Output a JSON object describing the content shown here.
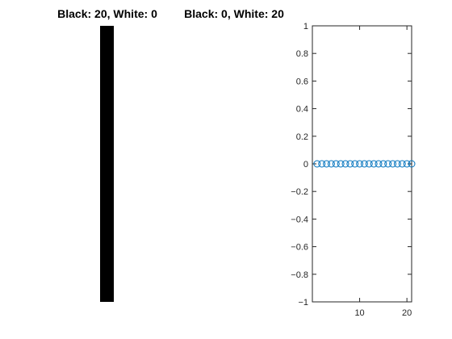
{
  "panels": {
    "left": {
      "title": "Black: 20, White: 0",
      "fill_color": "#000000"
    },
    "middle": {
      "title": "Black: 0, White: 20",
      "fill_color": "#ffffff"
    }
  },
  "chart_data": {
    "type": "scatter",
    "title": "",
    "xlabel": "",
    "ylabel": "",
    "xlim": [
      0,
      21
    ],
    "ylim": [
      -1,
      1
    ],
    "xticks": [
      10,
      20
    ],
    "yticks": [
      -1,
      -0.8,
      -0.6,
      -0.4,
      -0.2,
      0,
      0.2,
      0.4,
      0.6,
      0.8,
      1
    ],
    "ytick_labels": [
      "−1",
      "−0.8",
      "−0.6",
      "−0.4",
      "−0.2",
      "0",
      "0.2",
      "0.4",
      "0.6",
      "0.8",
      "1"
    ],
    "grid": false,
    "marker": "circle-open",
    "marker_color": "#0072BD",
    "series": [
      {
        "x": [
          1,
          2,
          3,
          4,
          5,
          6,
          7,
          8,
          9,
          10,
          11,
          12,
          13,
          14,
          15,
          16,
          17,
          18,
          19,
          20,
          21
        ],
        "y": [
          0,
          0,
          0,
          0,
          0,
          0,
          0,
          0,
          0,
          0,
          0,
          0,
          0,
          0,
          0,
          0,
          0,
          0,
          0,
          0,
          0
        ]
      }
    ]
  }
}
